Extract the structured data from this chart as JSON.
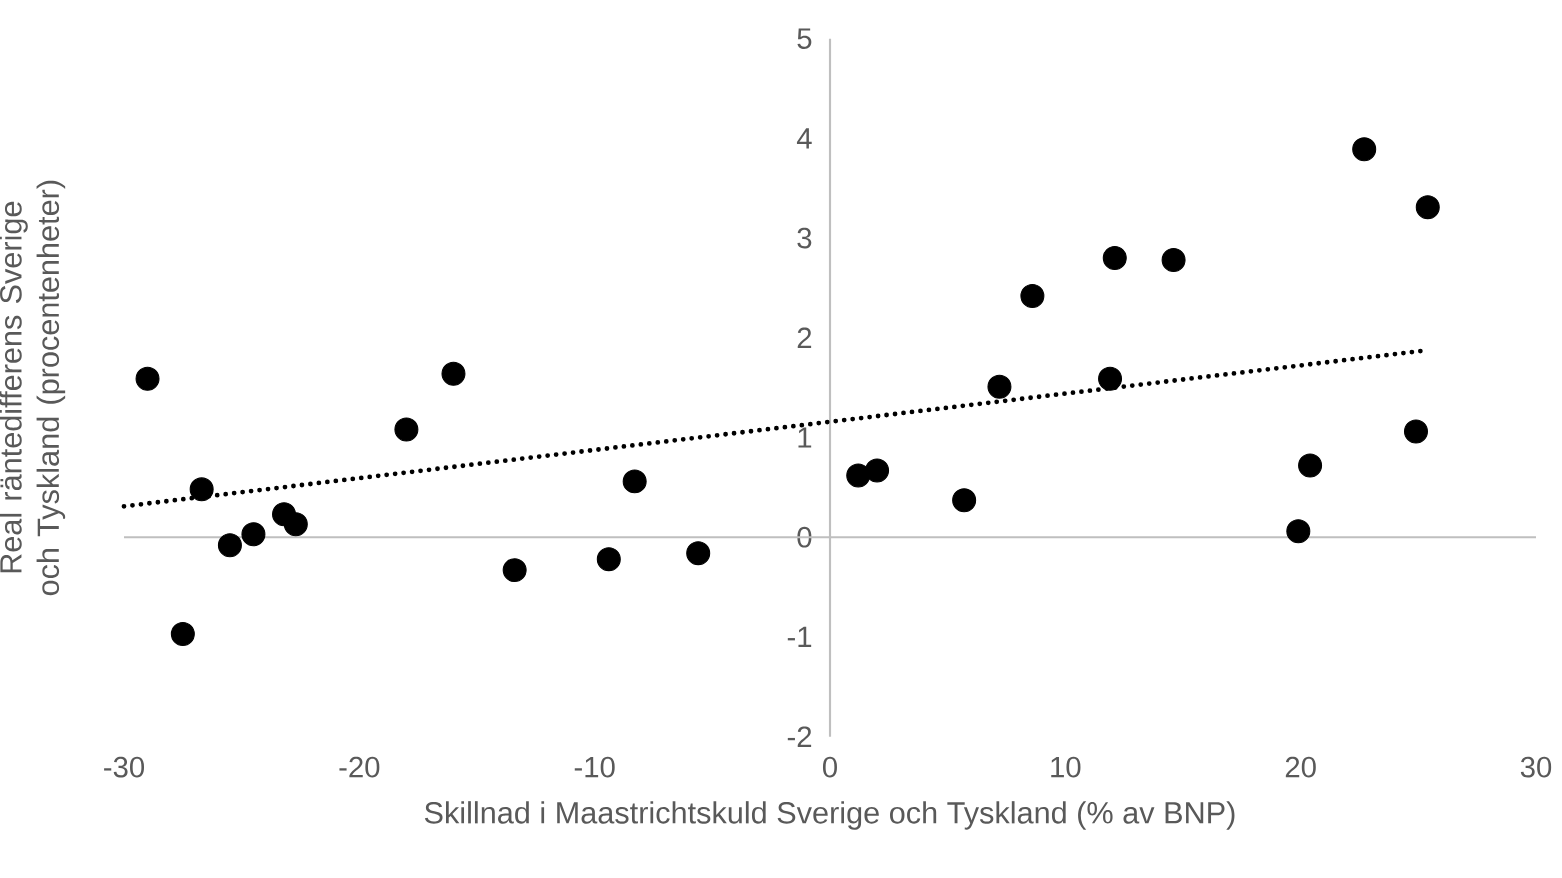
{
  "chart_data": {
    "type": "scatter",
    "xlabel": "Skillnad i Maastrichtskuld Sverige och Tyskland (% av BNP)",
    "ylabel": "Real räntedifferens Sverige och Tyskland (procentenheter)",
    "xlim": [
      -30,
      30
    ],
    "xticks": [
      -30,
      -20,
      -10,
      0,
      10,
      20,
      30
    ],
    "ylim": [
      -2,
      5
    ],
    "yticks": [
      -2,
      -1,
      0,
      1,
      2,
      3,
      4,
      5
    ],
    "series": [
      {
        "color": "#000000",
        "marker": "circle",
        "x": [
          -29.0,
          -27.5,
          -26.7,
          -25.5,
          -24.5,
          -23.2,
          -22.7,
          -18.0,
          -16.0,
          -13.4,
          -9.4,
          -8.3,
          -5.6,
          1.2,
          2.0,
          5.7,
          7.2,
          8.6,
          11.9,
          12.1,
          14.6,
          19.9,
          20.4,
          22.7,
          24.9,
          25.4
        ],
        "values": [
          1.59,
          -0.97,
          0.48,
          -0.08,
          0.03,
          0.23,
          0.13,
          1.08,
          1.64,
          -0.33,
          -0.22,
          0.56,
          -0.16,
          0.62,
          0.67,
          0.37,
          1.51,
          2.42,
          1.59,
          2.8,
          2.78,
          0.06,
          0.72,
          3.89,
          1.06,
          3.31
        ]
      },
      {
        "type": "line",
        "color": "#000000",
        "marker": "none",
        "line_style": "dotted",
        "x": [
          -30,
          25.2
        ],
        "values": [
          0.31,
          1.87
        ]
      }
    ]
  }
}
